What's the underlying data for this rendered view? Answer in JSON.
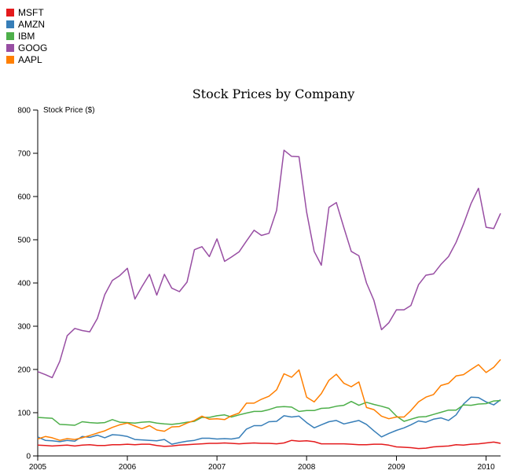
{
  "chart_data": {
    "type": "line",
    "title": "Stock Prices by Company",
    "ylabel": "Stock Price ($)",
    "xlabel": "",
    "xlim": [
      "2005-01-01",
      "2010-03-01"
    ],
    "ylim": [
      0,
      800
    ],
    "x_ticks": [
      "2005",
      "2006",
      "2007",
      "2008",
      "2009",
      "2010"
    ],
    "y_ticks": [
      0,
      100,
      200,
      300,
      400,
      500,
      600,
      700,
      800
    ],
    "grid": false,
    "legend_position": "top-left",
    "x": [
      "2005-01",
      "2005-02",
      "2005-03",
      "2005-04",
      "2005-05",
      "2005-06",
      "2005-07",
      "2005-08",
      "2005-09",
      "2005-10",
      "2005-11",
      "2005-12",
      "2006-01",
      "2006-02",
      "2006-03",
      "2006-04",
      "2006-05",
      "2006-06",
      "2006-07",
      "2006-08",
      "2006-09",
      "2006-10",
      "2006-11",
      "2006-12",
      "2007-01",
      "2007-02",
      "2007-03",
      "2007-04",
      "2007-05",
      "2007-06",
      "2007-07",
      "2007-08",
      "2007-09",
      "2007-10",
      "2007-11",
      "2007-12",
      "2008-01",
      "2008-02",
      "2008-03",
      "2008-04",
      "2008-05",
      "2008-06",
      "2008-07",
      "2008-08",
      "2008-09",
      "2008-10",
      "2008-11",
      "2008-12",
      "2009-01",
      "2009-02",
      "2009-03",
      "2009-04",
      "2009-05",
      "2009-06",
      "2009-07",
      "2009-08",
      "2009-09",
      "2009-10",
      "2009-11",
      "2009-12",
      "2010-01",
      "2010-02",
      "2010-03"
    ],
    "series": [
      {
        "name": "MSFT",
        "color": "#e41a1c",
        "values": [
          25,
          24,
          23,
          24,
          25,
          23,
          25,
          26,
          24,
          24,
          26,
          26,
          27,
          26,
          27,
          27,
          24,
          22,
          23,
          25,
          26,
          27,
          28,
          29,
          29,
          30,
          29,
          28,
          29,
          30,
          29,
          29,
          28,
          30,
          36,
          34,
          35,
          33,
          28,
          28,
          28,
          28,
          27,
          26,
          26,
          27,
          27,
          25,
          21,
          20,
          19,
          17,
          18,
          21,
          22,
          23,
          26,
          25,
          27,
          28,
          30,
          32,
          29
        ]
      },
      {
        "name": "AMZN",
        "color": "#377eb8",
        "values": [
          44,
          36,
          35,
          33,
          36,
          34,
          45,
          43,
          48,
          42,
          49,
          48,
          45,
          38,
          37,
          36,
          35,
          38,
          27,
          31,
          34,
          36,
          41,
          41,
          39,
          40,
          39,
          42,
          62,
          70,
          70,
          79,
          80,
          93,
          90,
          92,
          77,
          65,
          72,
          79,
          82,
          74,
          78,
          82,
          73,
          58,
          44,
          52,
          59,
          65,
          72,
          81,
          78,
          85,
          88,
          82,
          95,
          120,
          136,
          135,
          125,
          118,
          130
        ]
      },
      {
        "name": "IBM",
        "color": "#4daf4a",
        "values": [
          89,
          88,
          87,
          73,
          72,
          71,
          79,
          77,
          76,
          77,
          84,
          78,
          77,
          76,
          78,
          79,
          76,
          74,
          73,
          75,
          78,
          80,
          89,
          89,
          93,
          95,
          90,
          95,
          99,
          103,
          103,
          107,
          113,
          114,
          113,
          103,
          105,
          105,
          110,
          111,
          115,
          117,
          126,
          117,
          124,
          119,
          115,
          110,
          92,
          80,
          85,
          90,
          91,
          96,
          101,
          106,
          106,
          118,
          117,
          120,
          121,
          127,
          128
        ]
      },
      {
        "name": "GOOG",
        "color": "#984ea3",
        "values": [
          195,
          188,
          181,
          219,
          278,
          295,
          290,
          287,
          318,
          373,
          406,
          417,
          434,
          363,
          391,
          420,
          372,
          420,
          388,
          380,
          402,
          477,
          484,
          461,
          502,
          450,
          460,
          472,
          497,
          522,
          510,
          515,
          568,
          707,
          693,
          692,
          564,
          473,
          441,
          575,
          586,
          528,
          473,
          463,
          400,
          360,
          292,
          308,
          338,
          338,
          348,
          396,
          418,
          421,
          443,
          461,
          494,
          536,
          584,
          619,
          529,
          526,
          561
        ]
      },
      {
        "name": "AAPL",
        "color": "#ff7f00",
        "values": [
          39,
          45,
          42,
          36,
          40,
          38,
          42,
          47,
          53,
          58,
          66,
          72,
          76,
          69,
          63,
          70,
          60,
          57,
          67,
          68,
          76,
          82,
          92,
          85,
          86,
          84,
          93,
          99,
          122,
          122,
          131,
          138,
          153,
          190,
          182,
          199,
          136,
          125,
          144,
          175,
          189,
          168,
          160,
          171,
          112,
          107,
          92,
          86,
          90,
          90,
          105,
          125,
          136,
          142,
          163,
          168,
          185,
          188,
          200,
          211,
          193,
          205,
          223
        ]
      }
    ]
  }
}
